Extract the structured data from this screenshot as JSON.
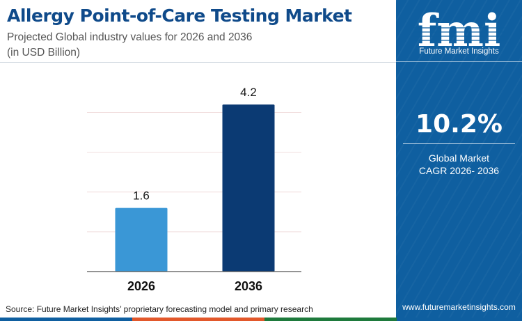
{
  "header": {
    "title": "Allergy Point-of-Care Testing Market",
    "subtitle": "Projected Global industry values for 2026 and 2036",
    "unit_note": "(in USD Billion)"
  },
  "chart_data": {
    "type": "bar",
    "categories": [
      "2026",
      "2036"
    ],
    "values": [
      1.6,
      4.2
    ],
    "value_labels": [
      "1.6",
      "4.2"
    ],
    "bar_colors": [
      "#3a97d6",
      "#0b3a73"
    ],
    "ylim": [
      0,
      4.5
    ],
    "grid": true,
    "legend": "none"
  },
  "footer": {
    "source": "Source: Future Market Insights’ proprietary forecasting model and primary research"
  },
  "sidebar": {
    "logo_text": "fmi",
    "logo_subtitle": "Future Market Insights",
    "cagr_value": "10.2%",
    "cagr_label_line1": "Global Market",
    "cagr_label_line2": "CAGR 2026- 2036",
    "website": "www.futuremarketinsights.com"
  },
  "colors": {
    "title": "#0f4a8a",
    "sidebar_bg": "#0f5fa0",
    "bottom_strip": [
      "#0f5fa0",
      "#e2582b",
      "#1e7a3c",
      "#0f5fa0"
    ]
  }
}
